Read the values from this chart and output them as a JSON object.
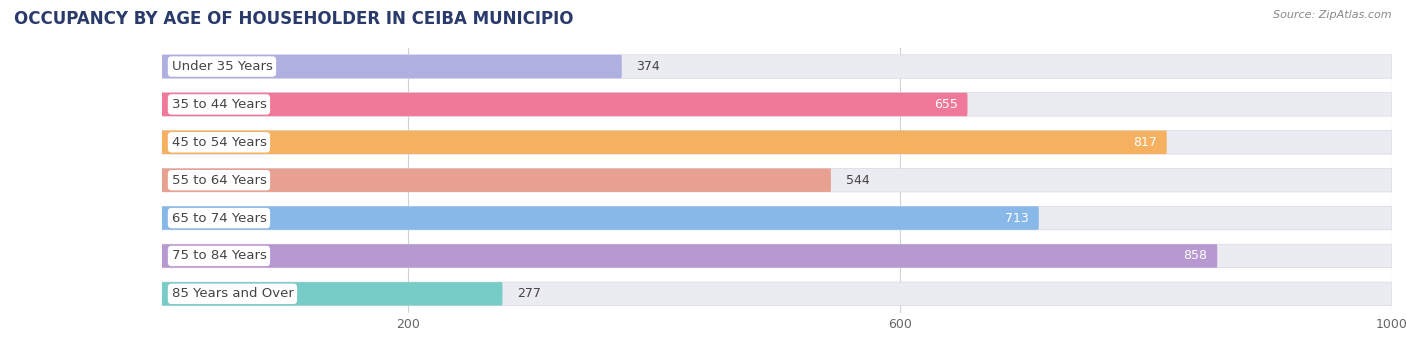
{
  "title": "OCCUPANCY BY AGE OF HOUSEHOLDER IN CEIBA MUNICIPIO",
  "source": "Source: ZipAtlas.com",
  "categories": [
    "Under 35 Years",
    "35 to 44 Years",
    "45 to 54 Years",
    "55 to 64 Years",
    "65 to 74 Years",
    "75 to 84 Years",
    "85 Years and Over"
  ],
  "values": [
    374,
    655,
    817,
    544,
    713,
    858,
    277
  ],
  "bar_colors": [
    "#b0b0e0",
    "#f07898",
    "#f5b060",
    "#e8a090",
    "#88b8e8",
    "#b898d0",
    "#78ccc8"
  ],
  "bar_bg_color": "#ebebf2",
  "label_bg_color": "#ffffff",
  "xlim_data": [
    0,
    1000
  ],
  "xticks": [
    200,
    600,
    1000
  ],
  "title_fontsize": 12,
  "label_fontsize": 9.5,
  "value_fontsize": 9,
  "background_color": "#ffffff",
  "title_color": "#2a3a6a",
  "label_color": "#444444",
  "value_color_light": "#ffffff",
  "value_color_dark": "#444444",
  "value_threshold": 650,
  "grid_color": "#d0d0d8",
  "source_color": "#888888"
}
